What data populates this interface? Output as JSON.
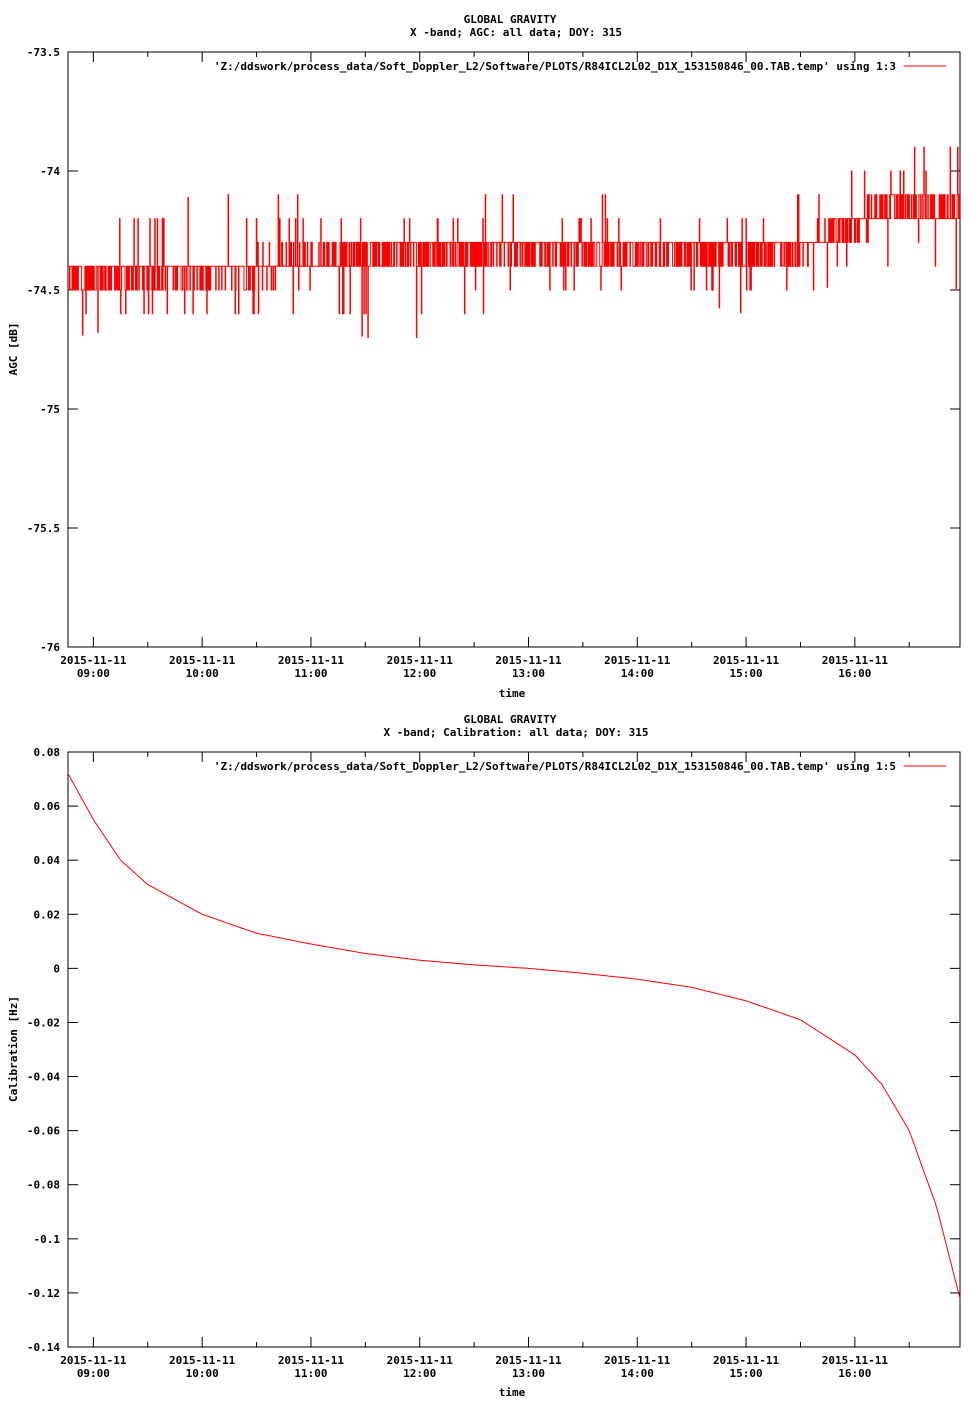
{
  "colors": {
    "series": "#ff0000",
    "axes": "#000000",
    "background": "#ffffff"
  },
  "chart_data": [
    {
      "type": "line",
      "title": "GLOBAL GRAVITY",
      "subtitle": "X -band; AGC: all data; DOY: 315",
      "xlabel": "time",
      "ylabel": "AGC [dB]",
      "ylim": [
        -76,
        -73.5
      ],
      "yticks": [
        -73.5,
        -74,
        -74.5,
        -75,
        -75.5,
        -76
      ],
      "ytick_labels": [
        "-73.5",
        "-74",
        "-74.5",
        "-75",
        "-75.5",
        "-76"
      ],
      "xlim": [
        "2015-11-11 08:46",
        "2015-11-11 16:58"
      ],
      "xticks": [
        "2015-11-11 09:00",
        "2015-11-11 10:00",
        "2015-11-11 11:00",
        "2015-11-11 12:00",
        "2015-11-11 13:00",
        "2015-11-11 14:00",
        "2015-11-11 15:00",
        "2015-11-11 16:00"
      ],
      "xtick_dates": [
        "2015-11-11",
        "2015-11-11",
        "2015-11-11",
        "2015-11-11",
        "2015-11-11",
        "2015-11-11",
        "2015-11-11",
        "2015-11-11"
      ],
      "xtick_times": [
        "09:00",
        "10:00",
        "11:00",
        "12:00",
        "13:00",
        "14:00",
        "15:00",
        "16:00"
      ],
      "grid": false,
      "legend_position": "top-right",
      "series": [
        {
          "name": "'Z:/ddswork/process_data/Soft_Doppler_L2/Software/PLOTS/R84ICL2L02_D1X_153150846_00.TAB.temp' using 1:3",
          "color": "#ff0000",
          "x": [
            "2015-11-11 08:46",
            "2015-11-11 10:00",
            "2015-11-11 11:00",
            "2015-11-11 11:30",
            "2015-11-11 12:10",
            "2015-11-11 13:00",
            "2015-11-11 14:00",
            "2015-11-11 15:00",
            "2015-11-11 15:40",
            "2015-11-11 16:20",
            "2015-11-11 16:58"
          ],
          "y_typical": [
            -74.45,
            -74.42,
            -74.38,
            -74.35,
            -74.33,
            -74.32,
            -74.34,
            -74.35,
            -74.3,
            -74.15,
            -74.18
          ],
          "y_low": [
            -74.7,
            -74.6,
            -74.6,
            -74.7,
            -74.7,
            -74.5,
            -74.5,
            -74.6,
            -74.5,
            -74.4,
            -74.5
          ],
          "y_high": [
            -74.2,
            -74.1,
            -74.1,
            -74.2,
            -74.1,
            -74.1,
            -74.1,
            -74.2,
            -74.0,
            -73.9,
            -73.9
          ]
        }
      ]
    },
    {
      "type": "line",
      "title": "GLOBAL GRAVITY",
      "subtitle": "X -band; Calibration: all data; DOY: 315",
      "xlabel": "time",
      "ylabel": "Calibration [Hz]",
      "ylim": [
        -0.14,
        0.08
      ],
      "yticks": [
        0.08,
        0.06,
        0.04,
        0.02,
        0,
        -0.02,
        -0.04,
        -0.06,
        -0.08,
        -0.1,
        -0.12,
        -0.14
      ],
      "ytick_labels": [
        "0.08",
        "0.06",
        "0.04",
        "0.02",
        "0",
        "-0.02",
        "-0.04",
        "-0.06",
        "-0.08",
        "-0.1",
        "-0.12",
        "-0.14"
      ],
      "xlim": [
        "2015-11-11 08:46",
        "2015-11-11 16:58"
      ],
      "xticks": [
        "2015-11-11 09:00",
        "2015-11-11 10:00",
        "2015-11-11 11:00",
        "2015-11-11 12:00",
        "2015-11-11 13:00",
        "2015-11-11 14:00",
        "2015-11-11 15:00",
        "2015-11-11 16:00"
      ],
      "xtick_dates": [
        "2015-11-11",
        "2015-11-11",
        "2015-11-11",
        "2015-11-11",
        "2015-11-11",
        "2015-11-11",
        "2015-11-11",
        "2015-11-11"
      ],
      "xtick_times": [
        "09:00",
        "10:00",
        "11:00",
        "12:00",
        "13:00",
        "14:00",
        "15:00",
        "16:00"
      ],
      "grid": false,
      "legend_position": "top-right",
      "series": [
        {
          "name": "'Z:/ddswork/process_data/Soft_Doppler_L2/Software/PLOTS/R84ICL2L02_D1X_153150846_00.TAB.temp' using 1:5",
          "color": "#ff0000",
          "x": [
            "2015-11-11 08:46",
            "2015-11-11 09:00",
            "2015-11-11 09:15",
            "2015-11-11 09:30",
            "2015-11-11 10:00",
            "2015-11-11 10:30",
            "2015-11-11 11:00",
            "2015-11-11 11:30",
            "2015-11-11 12:00",
            "2015-11-11 12:30",
            "2015-11-11 13:00",
            "2015-11-11 13:30",
            "2015-11-11 14:00",
            "2015-11-11 14:30",
            "2015-11-11 15:00",
            "2015-11-11 15:30",
            "2015-11-11 16:00",
            "2015-11-11 16:15",
            "2015-11-11 16:30",
            "2015-11-11 16:45",
            "2015-11-11 16:58"
          ],
          "y": [
            0.072,
            0.055,
            0.04,
            0.031,
            0.02,
            0.013,
            0.009,
            0.0055,
            0.003,
            0.0013,
            0.0,
            -0.0018,
            -0.004,
            -0.007,
            -0.012,
            -0.019,
            -0.032,
            -0.043,
            -0.06,
            -0.088,
            -0.122
          ]
        }
      ]
    }
  ]
}
